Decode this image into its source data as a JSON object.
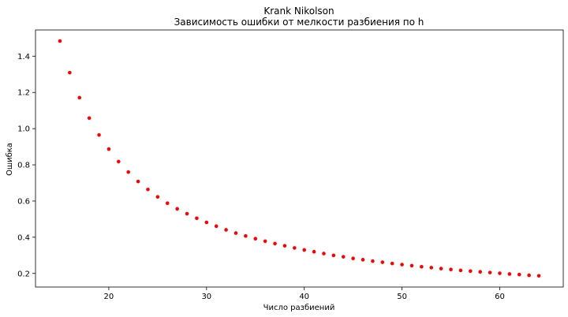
{
  "chart_data": {
    "type": "scatter",
    "title": "Krank Nikolson",
    "subtitle": "Зависимость ошибки от мелкости разбиения по h",
    "xlabel": "Число разбиений",
    "ylabel": "Ошибка",
    "xlim": [
      12.5,
      66.5
    ],
    "ylim": [
      0.125,
      1.545
    ],
    "grid": false,
    "x_ticks": [
      20,
      30,
      40,
      50,
      60
    ],
    "x_tick_labels": [
      "20",
      "30",
      "40",
      "50",
      "60"
    ],
    "y_ticks": [
      0.2,
      0.4,
      0.6,
      0.8,
      1.0,
      1.2,
      1.4
    ],
    "y_tick_labels": [
      "0.2",
      "0.4",
      "0.6",
      "0.8",
      "1.0",
      "1.2",
      "1.4"
    ],
    "marker_color": "#ff0000",
    "series": [
      {
        "name": "error",
        "x": [
          15,
          16,
          17,
          18,
          19,
          20,
          21,
          22,
          23,
          24,
          25,
          26,
          27,
          28,
          29,
          30,
          31,
          32,
          33,
          34,
          35,
          36,
          37,
          38,
          39,
          40,
          41,
          42,
          43,
          44,
          45,
          46,
          47,
          48,
          49,
          50,
          51,
          52,
          53,
          54,
          55,
          56,
          57,
          58,
          59,
          60,
          61,
          62,
          63,
          64
        ],
        "y": [
          1.484,
          1.309,
          1.171,
          1.058,
          0.965,
          0.887,
          0.818,
          0.76,
          0.708,
          0.664,
          0.623,
          0.588,
          0.557,
          0.53,
          0.505,
          0.482,
          0.461,
          0.441,
          0.423,
          0.407,
          0.392,
          0.378,
          0.365,
          0.353,
          0.341,
          0.33,
          0.32,
          0.31,
          0.3,
          0.292,
          0.283,
          0.276,
          0.268,
          0.262,
          0.255,
          0.249,
          0.243,
          0.237,
          0.232,
          0.227,
          0.222,
          0.217,
          0.213,
          0.209,
          0.205,
          0.201,
          0.197,
          0.194,
          0.19,
          0.187
        ]
      }
    ]
  }
}
